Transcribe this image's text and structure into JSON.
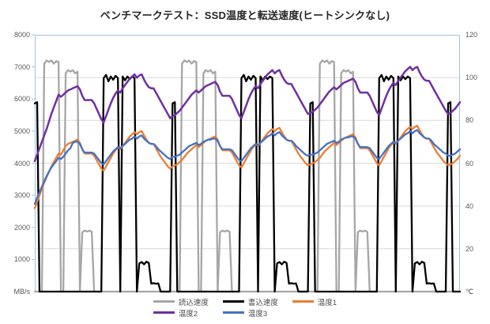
{
  "title": "ベンチマークテスト：SSD温度と転送速度(ヒートシンクなし)",
  "colors": {
    "plot_border": "#9DC3E6",
    "gridline": "#D9D9D9",
    "axis_text": "#595959",
    "read": "#A6A6A6",
    "write": "#000000",
    "temp1": "#ED7D31",
    "temp2": "#7030A0",
    "temp3": "#4472C4"
  },
  "axes": {
    "left": {
      "max": 8000,
      "tick_labels": [
        "8000",
        "7000",
        "6000",
        "5000",
        "4000",
        "3000",
        "2000",
        "1000"
      ],
      "unit_label": "MB/s"
    },
    "right": {
      "max": 120,
      "tick_labels": [
        "120",
        "100",
        "80",
        "60",
        "40",
        "20"
      ],
      "unit_label": "℃"
    },
    "x": {
      "visible": false
    },
    "gridlines_right_interval": 20
  },
  "legend": [
    {
      "key": "read-speed",
      "label": "読込速度",
      "color": "#A6A6A6"
    },
    {
      "key": "write-speed",
      "label": "書込速度",
      "color": "#000000"
    },
    {
      "key": "temp1",
      "label": "温度1",
      "color": "#ED7D31"
    },
    {
      "key": "temp2",
      "label": "温度2",
      "color": "#7030A0"
    },
    {
      "key": "temp3",
      "label": "温度3",
      "color": "#4472C4"
    }
  ],
  "chart_data": {
    "type": "line",
    "title": "ベンチマークテスト：SSD温度と転送速度(ヒートシンクなし)",
    "x_axis": "time (unlabeled)",
    "left_axis": {
      "label": "MB/s",
      "range": [
        0,
        8000
      ]
    },
    "right_axis": {
      "label": "℃",
      "range": [
        0,
        120
      ]
    },
    "grid": "horizontal, every 20℃",
    "legend_position": "bottom",
    "series": [
      {
        "name": "読込速度",
        "key": "read-speed",
        "axis": "left",
        "color": "#A6A6A6",
        "width": 2.3,
        "values": [
          0,
          0,
          0,
          0,
          7100,
          7200,
          7150,
          7200,
          7100,
          7180,
          7150,
          0,
          0,
          6800,
          6900,
          6850,
          6900,
          6800,
          6850,
          0,
          1850,
          1900,
          1870,
          1900,
          1860,
          0,
          0,
          0,
          0,
          0,
          0,
          0,
          0,
          0,
          0,
          0,
          0,
          0,
          0,
          0,
          0,
          0,
          0,
          0,
          0,
          0,
          0,
          0,
          0,
          0,
          0,
          0,
          0,
          0,
          0,
          0,
          0,
          0,
          0,
          0,
          0,
          0,
          7100,
          7200,
          7150,
          7200,
          7100,
          7180,
          7150,
          0,
          0,
          6800,
          6900,
          6850,
          6900,
          6800,
          6850,
          0,
          1850,
          1900,
          1870,
          1900,
          1860,
          0,
          0,
          0,
          0,
          0,
          0,
          0,
          0,
          0,
          0,
          0,
          0,
          0,
          0,
          0,
          0,
          0,
          0,
          0,
          0,
          0,
          0,
          0,
          0,
          0,
          0,
          0,
          0,
          0,
          0,
          0,
          0,
          0,
          0,
          0,
          0,
          0,
          7100,
          7200,
          7150,
          7200,
          7100,
          7180,
          7150,
          0,
          0,
          6800,
          6900,
          6850,
          6900,
          6800,
          6850,
          0,
          1850,
          1900,
          1870,
          1900,
          1860,
          0,
          0,
          0,
          0,
          0,
          0,
          0,
          0,
          0,
          0,
          0,
          0,
          0,
          0,
          0,
          0,
          0,
          0,
          0,
          0,
          0,
          0,
          0,
          0,
          0,
          0,
          0,
          0,
          0,
          0,
          0,
          0,
          0,
          0,
          0,
          0,
          0,
          0,
          0
        ]
      },
      {
        "name": "書込速度",
        "key": "write-speed",
        "axis": "left",
        "color": "#000000",
        "width": 2.3,
        "values": [
          5860,
          5900,
          0,
          0,
          0,
          0,
          0,
          0,
          0,
          0,
          0,
          0,
          0,
          0,
          0,
          0,
          0,
          0,
          0,
          0,
          0,
          0,
          0,
          0,
          0,
          0,
          0,
          0,
          0,
          6650,
          6750,
          6550,
          6700,
          6600,
          6720,
          6650,
          0,
          6700,
          6580,
          6700,
          6620,
          6700,
          6650,
          0,
          880,
          920,
          850,
          930,
          890,
          250,
          260,
          245,
          255,
          0,
          0,
          0,
          0,
          0,
          5860,
          5900,
          0,
          0,
          0,
          0,
          0,
          0,
          0,
          0,
          0,
          0,
          0,
          0,
          0,
          0,
          0,
          0,
          0,
          0,
          0,
          0,
          0,
          0,
          0,
          0,
          0,
          0,
          0,
          6650,
          6750,
          6550,
          6700,
          6600,
          6720,
          6650,
          0,
          6700,
          6580,
          6700,
          6620,
          6700,
          6650,
          0,
          880,
          920,
          850,
          930,
          890,
          250,
          260,
          245,
          255,
          0,
          0,
          0,
          0,
          0,
          5860,
          5900,
          0,
          0,
          0,
          0,
          0,
          0,
          0,
          0,
          0,
          0,
          0,
          0,
          0,
          0,
          0,
          0,
          0,
          0,
          0,
          0,
          0,
          0,
          0,
          0,
          0,
          0,
          0,
          6650,
          6750,
          6550,
          6700,
          6600,
          6720,
          6650,
          0,
          6700,
          6580,
          6700,
          6620,
          6700,
          6650,
          0,
          880,
          920,
          850,
          930,
          890,
          250,
          260,
          245,
          255,
          0,
          0,
          0,
          0,
          0,
          5860,
          5900,
          0,
          0,
          0,
          0
        ]
      },
      {
        "name": "温度1",
        "key": "temp1",
        "axis": "right",
        "color": "#ED7D31",
        "width": 2.3,
        "values": [
          39,
          42,
          45,
          48,
          51,
          53.5,
          56,
          58.5,
          60.5,
          62.5,
          64.5,
          64,
          66,
          68,
          69,
          69.5,
          70,
          70.5,
          71,
          69.5,
          66.5,
          64.5,
          64.5,
          64.5,
          64.5,
          63.5,
          61.5,
          59.5,
          57.5,
          56.5,
          58.5,
          60.5,
          62.5,
          64.5,
          66,
          67.5,
          66.5,
          68,
          69.5,
          71,
          72.5,
          73.5,
          74.5,
          73.5,
          74.5,
          75,
          73,
          71,
          69.5,
          69,
          69,
          67,
          65,
          63,
          61.5,
          60,
          58.5,
          57.5,
          58.5,
          59,
          59.5,
          60.5,
          61.5,
          63,
          64.5,
          65.5,
          66.5,
          67.5,
          68.5,
          67.5,
          68.5,
          69.5,
          70.5,
          71,
          71.5,
          72,
          72.5,
          71,
          68,
          66,
          66,
          66,
          66,
          65,
          63,
          61,
          59,
          58,
          60,
          62,
          64,
          66,
          67.5,
          69,
          68,
          69.5,
          71,
          72.5,
          74,
          75,
          76,
          75,
          76,
          76.5,
          74.5,
          72.5,
          71,
          70.5,
          70.5,
          68.5,
          66.5,
          64.5,
          63,
          61.5,
          60,
          59,
          59.5,
          60,
          60.5,
          61.5,
          62.5,
          64,
          65.5,
          66.5,
          67.5,
          68.5,
          69.5,
          68.5,
          69.5,
          70.5,
          71.5,
          72,
          72.5,
          73,
          73.5,
          72,
          69,
          67,
          67,
          67,
          67,
          66,
          64,
          62,
          60,
          59,
          61,
          63,
          65,
          67,
          68.5,
          70,
          69,
          70.5,
          72,
          73.5,
          75,
          76,
          77,
          76,
          77,
          77.5,
          75.5,
          73.5,
          72,
          71.5,
          71.5,
          69.5,
          67.5,
          65.5,
          64,
          62.5,
          61,
          60,
          59,
          59.5,
          60,
          61,
          62,
          63.5
        ]
      },
      {
        "name": "温度2",
        "key": "temp2",
        "axis": "right",
        "color": "#7030A0",
        "width": 2.5,
        "values": [
          61,
          64,
          67,
          70,
          73,
          76,
          79.5,
          83,
          86,
          89,
          92,
          91,
          92,
          93,
          94,
          94.5,
          95,
          95.5,
          96,
          94.5,
          91.5,
          89.5,
          89.5,
          89.5,
          89.5,
          88,
          85.5,
          83,
          80.5,
          79,
          82,
          85,
          88,
          90.5,
          92.5,
          94,
          93,
          95,
          96.5,
          98,
          99.5,
          100.5,
          101.5,
          100,
          101,
          101.5,
          99,
          97,
          95.5,
          95,
          95,
          93,
          91,
          89,
          87,
          85,
          83,
          81,
          82,
          82.5,
          83.5,
          84.5,
          86,
          87.5,
          89,
          90.5,
          92,
          93,
          94,
          93,
          94,
          95,
          96,
          96.5,
          97,
          97.5,
          98,
          96.5,
          93.5,
          91.5,
          91.5,
          91.5,
          91.5,
          90,
          87.5,
          85,
          82.5,
          81,
          84,
          87,
          90,
          92.5,
          94.5,
          96,
          95,
          97,
          98.5,
          100,
          101.5,
          102.5,
          103.5,
          102,
          103,
          103.5,
          101,
          99,
          97.5,
          97,
          97,
          95,
          93,
          91,
          89,
          87,
          85,
          83,
          83.5,
          84,
          85,
          86,
          87.5,
          89,
          90.5,
          92,
          93.5,
          94.5,
          95.5,
          94.5,
          95.5,
          96.5,
          97.5,
          98,
          98.5,
          99,
          99.5,
          98,
          95,
          93,
          93,
          93,
          93,
          91.5,
          89,
          86.5,
          84,
          82.5,
          85.5,
          88.5,
          91.5,
          94,
          96,
          97.5,
          96.5,
          98.5,
          100,
          101.5,
          103,
          104,
          105,
          103.5,
          104.5,
          105,
          102.5,
          100.5,
          99,
          98.5,
          98.5,
          96.5,
          94.5,
          92.5,
          90.5,
          88.5,
          86.5,
          84.5,
          83,
          83.5,
          84.5,
          85.5,
          87,
          88.5
        ]
      },
      {
        "name": "温度3",
        "key": "temp3",
        "axis": "right",
        "color": "#4472C4",
        "width": 2.3,
        "values": [
          41,
          44,
          46.5,
          49,
          51.5,
          54,
          56,
          58,
          59.5,
          61,
          62.5,
          62,
          63,
          64.5,
          66,
          67,
          69.5,
          70,
          70,
          69,
          66.5,
          65,
          65,
          65,
          65,
          64.5,
          63,
          61.5,
          60,
          59.5,
          61,
          62.5,
          64,
          65.5,
          66.5,
          67.5,
          67,
          68,
          69,
          70,
          71,
          71.5,
          72.5,
          71.5,
          72.5,
          73,
          71.5,
          70.5,
          69.5,
          69,
          69,
          68,
          66.5,
          65.5,
          64.5,
          63.5,
          62.5,
          62,
          63,
          63,
          63.5,
          64,
          65,
          66,
          67,
          68,
          68.5,
          69,
          69.5,
          68.5,
          69,
          70,
          70.5,
          71,
          71,
          71.5,
          71.5,
          70.5,
          68,
          66.5,
          66.5,
          66.5,
          66.5,
          66,
          64.5,
          63,
          61.5,
          61,
          62.5,
          64,
          65.5,
          67,
          68,
          69,
          68.5,
          69.5,
          70.5,
          71.5,
          72.5,
          73,
          74,
          73,
          74,
          74.5,
          73,
          72,
          71,
          70.5,
          70.5,
          69.5,
          68,
          67,
          66,
          65,
          64,
          63.5,
          64,
          64,
          64.5,
          65,
          66,
          67,
          68,
          69,
          69.5,
          70,
          70.5,
          69.5,
          70,
          71,
          71.5,
          72,
          72,
          72.5,
          72.5,
          71.5,
          69,
          67.5,
          67.5,
          67.5,
          67.5,
          67,
          65.5,
          64,
          62.5,
          62,
          63.5,
          65,
          66.5,
          68,
          69,
          70,
          69.5,
          70.5,
          71.5,
          72.5,
          73.5,
          74,
          75,
          74,
          75,
          75.5,
          74,
          73,
          72,
          71.5,
          71.5,
          70.5,
          69,
          68,
          67,
          66,
          65,
          64.5,
          63.5,
          63.5,
          64,
          64.5,
          65.5,
          66.5
        ]
      }
    ]
  }
}
